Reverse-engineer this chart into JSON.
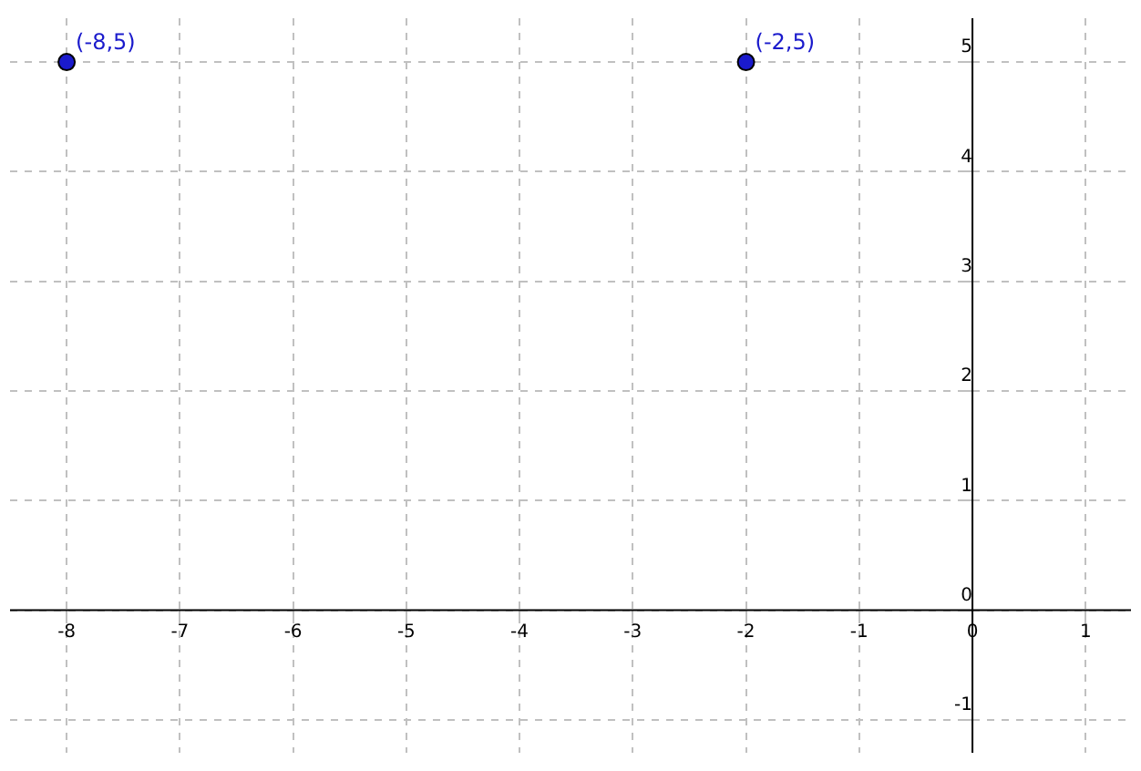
{
  "chart_data": {
    "type": "scatter",
    "series": [
      {
        "color": "#1a1acc",
        "x": [
          -8,
          -2
        ],
        "values": [
          5,
          5
        ]
      }
    ],
    "xlim": [
      -8.5,
      1.4
    ],
    "ylim": [
      -1.3,
      5.4
    ],
    "xticks": [
      -8,
      -7,
      -6,
      -5,
      -4,
      -3,
      -2,
      -1,
      0,
      1
    ],
    "yticks": [
      -1,
      0,
      1,
      2,
      3,
      4,
      5
    ],
    "grid": true,
    "marker": "circle",
    "legend": false,
    "annotations": [
      {
        "text": "(-8,5)",
        "x": -8,
        "y": 5
      },
      {
        "text": "(-2,5)",
        "x": -2,
        "y": 5
      }
    ]
  }
}
